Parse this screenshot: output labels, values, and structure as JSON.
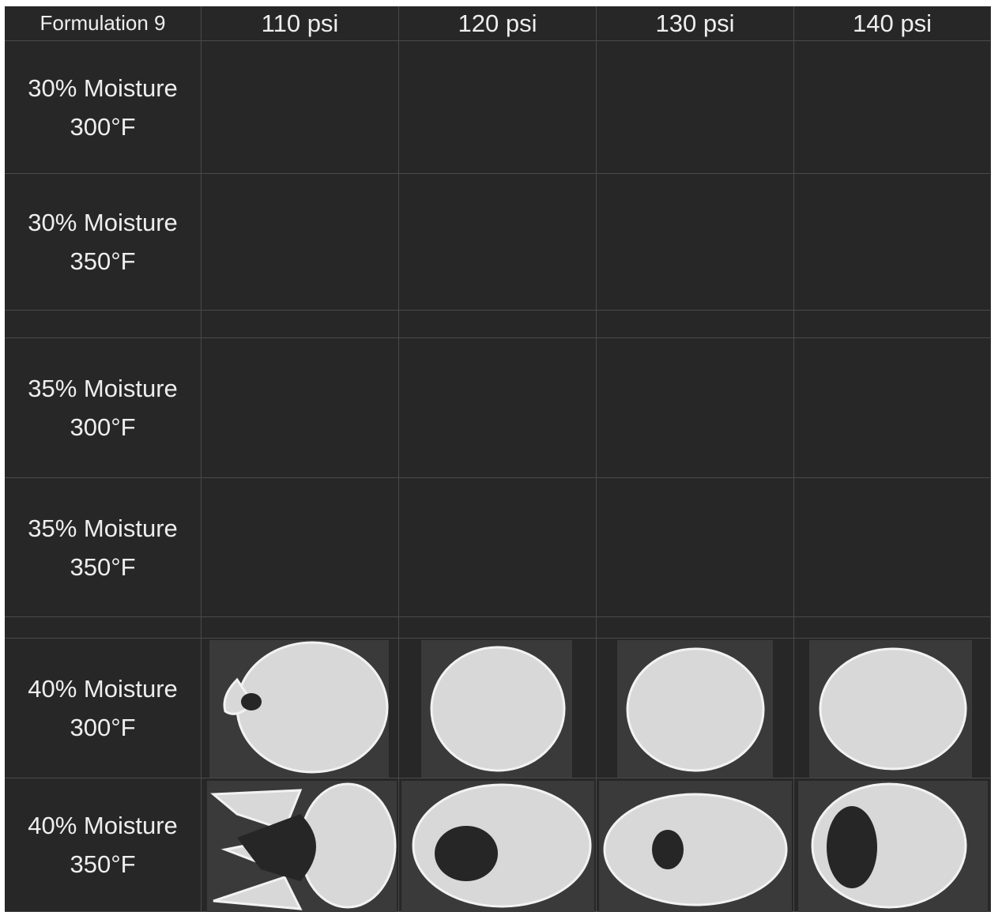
{
  "header": [
    "Formulation 9",
    "110 psi",
    "120 psi",
    "130 psi",
    "140 psi"
  ],
  "rows": [
    {
      "moisture": "30% Moisture",
      "temperature": "300°F"
    },
    {
      "moisture": "30% Moisture",
      "temperature": "350°F"
    },
    {
      "moisture": "35% Moisture",
      "temperature": "300°F"
    },
    {
      "moisture": "35% Moisture",
      "temperature": "350°F"
    },
    {
      "moisture": "40% Moisture",
      "temperature": "300°F"
    },
    {
      "moisture": "40% Moisture",
      "temperature": "350°F"
    }
  ]
}
